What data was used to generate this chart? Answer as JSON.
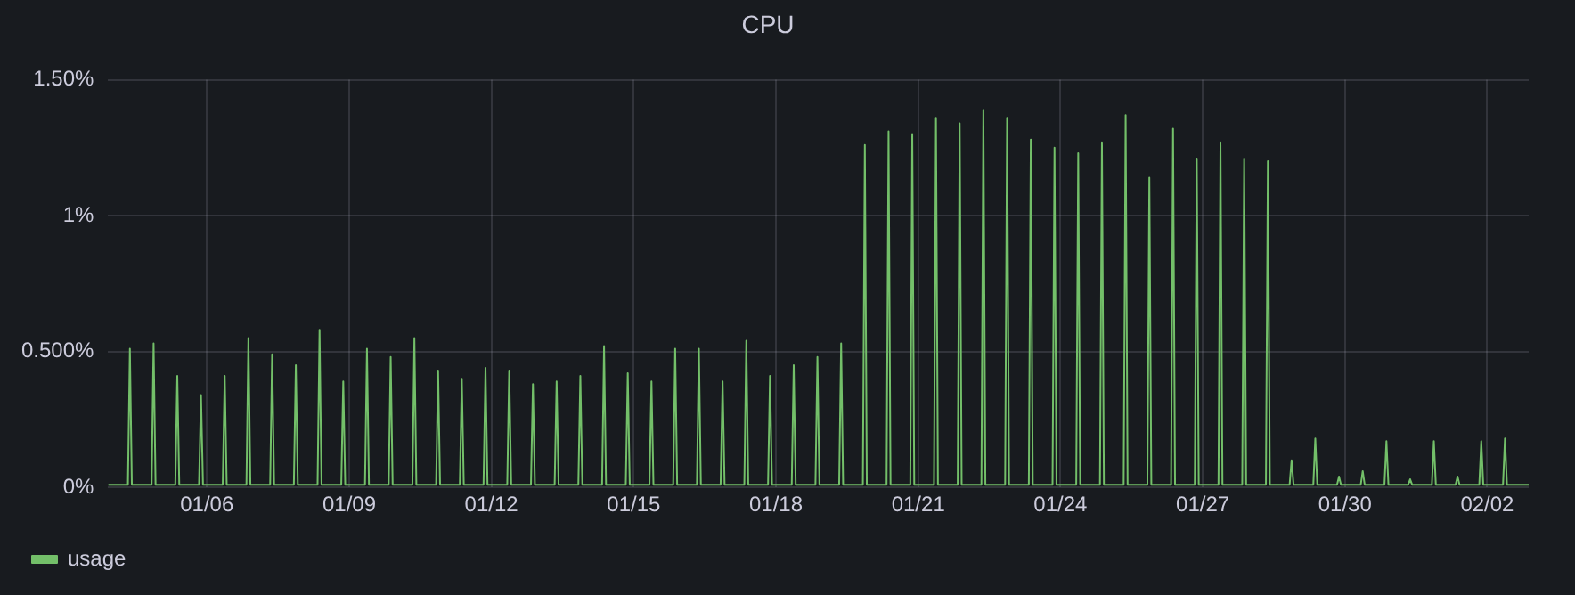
{
  "chart_data": {
    "type": "line",
    "title": "CPU",
    "series": [
      {
        "name": "usage",
        "color": "#73bf69",
        "x": [
          "--01-03T22:00",
          "--01-04T08:00",
          "--01-04T09:00",
          "--01-04T10:00",
          "--01-04T20:00",
          "--01-04T21:00",
          "--01-04T22:00",
          "--01-05T08:00",
          "--01-05T09:00",
          "--01-05T10:00",
          "--01-05T20:00",
          "--01-05T21:00",
          "--01-05T22:00",
          "--01-06T08:00",
          "--01-06T09:00",
          "--01-06T10:00",
          "--01-06T20:00",
          "--01-06T21:00",
          "--01-06T22:00",
          "--01-07T08:00",
          "--01-07T09:00",
          "--01-07T10:00",
          "--01-07T20:00",
          "--01-07T21:00",
          "--01-07T22:00",
          "--01-08T08:00",
          "--01-08T09:00",
          "--01-08T10:00",
          "--01-08T20:00",
          "--01-08T21:00",
          "--01-08T22:00",
          "--01-09T08:00",
          "--01-09T09:00",
          "--01-09T10:00",
          "--01-09T20:00",
          "--01-09T21:00",
          "--01-09T22:00",
          "--01-10T08:00",
          "--01-10T09:00",
          "--01-10T10:00",
          "--01-10T20:00",
          "--01-10T21:00",
          "--01-10T22:00",
          "--01-11T08:00",
          "--01-11T09:00",
          "--01-11T10:00",
          "--01-11T20:00",
          "--01-11T21:00",
          "--01-11T22:00",
          "--01-12T08:00",
          "--01-12T09:00",
          "--01-12T10:00",
          "--01-12T20:00",
          "--01-12T21:00",
          "--01-12T22:00",
          "--01-13T08:00",
          "--01-13T09:00",
          "--01-13T10:00",
          "--01-13T20:00",
          "--01-13T21:00",
          "--01-13T22:00",
          "--01-14T08:00",
          "--01-14T09:00",
          "--01-14T10:00",
          "--01-14T20:00",
          "--01-14T21:00",
          "--01-14T22:00",
          "--01-15T08:00",
          "--01-15T09:00",
          "--01-15T10:00",
          "--01-15T20:00",
          "--01-15T21:00",
          "--01-15T22:00",
          "--01-16T08:00",
          "--01-16T09:00",
          "--01-16T10:00",
          "--01-16T20:00",
          "--01-16T21:00",
          "--01-16T22:00",
          "--01-17T08:00",
          "--01-17T09:00",
          "--01-17T10:00",
          "--01-17T20:00",
          "--01-17T21:00",
          "--01-17T22:00",
          "--01-18T08:00",
          "--01-18T09:00",
          "--01-18T10:00",
          "--01-18T20:00",
          "--01-18T21:00",
          "--01-18T22:00",
          "--01-19T08:00",
          "--01-19T09:00",
          "--01-19T10:00",
          "--01-19T20:00",
          "--01-19T21:00",
          "--01-19T22:00",
          "--01-20T08:00",
          "--01-20T09:00",
          "--01-20T10:00",
          "--01-20T20:00",
          "--01-20T21:00",
          "--01-20T22:00",
          "--01-21T08:00",
          "--01-21T09:00",
          "--01-21T10:00",
          "--01-21T20:00",
          "--01-21T21:00",
          "--01-21T22:00",
          "--01-22T08:00",
          "--01-22T09:00",
          "--01-22T10:00",
          "--01-22T20:00",
          "--01-22T21:00",
          "--01-22T22:00",
          "--01-23T08:00",
          "--01-23T09:00",
          "--01-23T10:00",
          "--01-23T20:00",
          "--01-23T21:00",
          "--01-23T22:00",
          "--01-24T08:00",
          "--01-24T09:00",
          "--01-24T10:00",
          "--01-24T20:00",
          "--01-24T21:00",
          "--01-24T22:00",
          "--01-25T08:00",
          "--01-25T09:00",
          "--01-25T10:00",
          "--01-25T20:00",
          "--01-25T21:00",
          "--01-25T22:00",
          "--01-26T08:00",
          "--01-26T09:00",
          "--01-26T10:00",
          "--01-26T20:00",
          "--01-26T21:00",
          "--01-26T22:00",
          "--01-27T08:00",
          "--01-27T09:00",
          "--01-27T10:00",
          "--01-27T20:00",
          "--01-27T21:00",
          "--01-27T22:00",
          "--01-28T08:00",
          "--01-28T09:00",
          "--01-28T10:00",
          "--01-28T20:00",
          "--01-28T21:00",
          "--01-28T22:00",
          "--01-29T08:00",
          "--01-29T09:00",
          "--01-29T10:00",
          "--01-29T20:00",
          "--01-29T21:00",
          "--01-29T22:00",
          "--01-30T08:00",
          "--01-30T09:00",
          "--01-30T10:00",
          "--01-30T20:00",
          "--01-30T21:00",
          "--01-30T22:00",
          "--01-31T08:00",
          "--01-31T09:00",
          "--01-31T10:00",
          "--01-31T20:00",
          "--01-31T21:00",
          "--01-31T22:00",
          "--02-01T08:00",
          "--02-01T09:00",
          "--02-01T10:00",
          "--02-01T20:00",
          "--02-01T21:00",
          "--02-01T22:00",
          "--02-02T08:00",
          "--02-02T09:00",
          "--02-02T10:00",
          "--02-02T21:00"
        ],
        "values": [
          0.01,
          0.01,
          0.51,
          0.01,
          0.01,
          0.53,
          0.01,
          0.01,
          0.41,
          0.01,
          0.01,
          0.34,
          0.01,
          0.01,
          0.41,
          0.01,
          0.01,
          0.55,
          0.01,
          0.01,
          0.49,
          0.01,
          0.01,
          0.45,
          0.01,
          0.01,
          0.58,
          0.01,
          0.01,
          0.39,
          0.01,
          0.01,
          0.51,
          0.01,
          0.01,
          0.48,
          0.01,
          0.01,
          0.55,
          0.01,
          0.01,
          0.43,
          0.01,
          0.01,
          0.4,
          0.01,
          0.01,
          0.44,
          0.01,
          0.01,
          0.43,
          0.01,
          0.01,
          0.38,
          0.01,
          0.01,
          0.39,
          0.01,
          0.01,
          0.41,
          0.01,
          0.01,
          0.52,
          0.01,
          0.01,
          0.42,
          0.01,
          0.01,
          0.39,
          0.01,
          0.01,
          0.51,
          0.01,
          0.01,
          0.51,
          0.01,
          0.01,
          0.39,
          0.01,
          0.01,
          0.54,
          0.01,
          0.01,
          0.41,
          0.01,
          0.01,
          0.45,
          0.01,
          0.01,
          0.48,
          0.01,
          0.01,
          0.53,
          0.01,
          0.01,
          1.26,
          0.01,
          0.01,
          1.31,
          0.01,
          0.01,
          1.3,
          0.01,
          0.01,
          1.36,
          0.01,
          0.01,
          1.34,
          0.01,
          0.01,
          1.39,
          0.01,
          0.01,
          1.36,
          0.01,
          0.01,
          1.28,
          0.01,
          0.01,
          1.25,
          0.01,
          0.01,
          1.23,
          0.01,
          0.01,
          1.27,
          0.01,
          0.01,
          1.37,
          0.01,
          0.01,
          1.14,
          0.01,
          0.01,
          1.32,
          0.01,
          0.01,
          1.21,
          0.01,
          0.01,
          1.27,
          0.01,
          0.01,
          1.21,
          0.01,
          0.01,
          1.2,
          0.01,
          0.01,
          0.1,
          0.01,
          0.01,
          0.18,
          0.01,
          0.01,
          0.04,
          0.01,
          0.01,
          0.06,
          0.01,
          0.01,
          0.17,
          0.01,
          0.01,
          0.03,
          0.01,
          0.01,
          0.17,
          0.01,
          0.01,
          0.04,
          0.01,
          0.01,
          0.17,
          0.01,
          0.01,
          0.18,
          0.01,
          0.01
        ]
      }
    ],
    "xlim": [
      "--01-03T22:00",
      "--02-02T21:00"
    ],
    "xticks": [
      {
        "value": "--01-06",
        "label": "01/06"
      },
      {
        "value": "--01-09",
        "label": "01/09"
      },
      {
        "value": "--01-12",
        "label": "01/12"
      },
      {
        "value": "--01-15",
        "label": "01/15"
      },
      {
        "value": "--01-18",
        "label": "01/18"
      },
      {
        "value": "--01-21",
        "label": "01/21"
      },
      {
        "value": "--01-24",
        "label": "01/24"
      },
      {
        "value": "--01-27",
        "label": "01/27"
      },
      {
        "value": "--01-30",
        "label": "01/30"
      },
      {
        "value": "--02-02",
        "label": "02/02"
      }
    ],
    "ylim": [
      0,
      1.5
    ],
    "yticks": [
      {
        "value": 0,
        "label": "0%"
      },
      {
        "value": 0.5,
        "label": "0.500%"
      },
      {
        "value": 1,
        "label": "1%"
      },
      {
        "value": 1.5,
        "label": "1.50%"
      }
    ],
    "grid": true,
    "legend": "bottom left",
    "marker": "none",
    "line_style": "solid"
  }
}
